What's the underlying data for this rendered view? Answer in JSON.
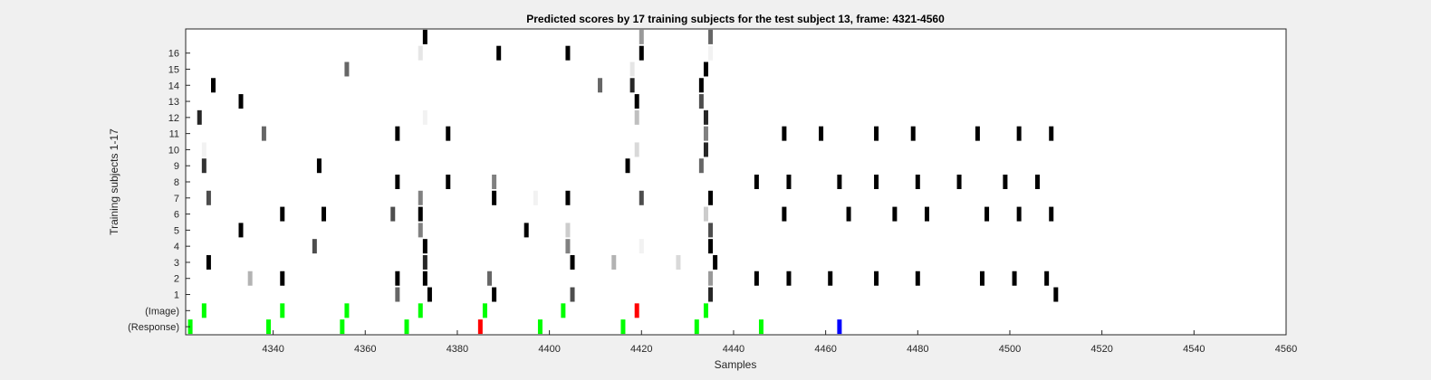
{
  "chart_data": {
    "type": "heatmap",
    "title": "Predicted scores by 17 training subjects for the test subject 13, frame: 4321-4560",
    "xlabel": "Samples",
    "ylabel": "Training subjects 1-17",
    "xlim": [
      4321,
      4560
    ],
    "xticks": [
      4340,
      4360,
      4380,
      4400,
      4420,
      4440,
      4460,
      4480,
      4500,
      4520,
      4540,
      4560
    ],
    "rows": [
      "(Response)",
      "(Image)",
      "1",
      "2",
      "3",
      "4",
      "5",
      "6",
      "7",
      "8",
      "9",
      "10",
      "11",
      "12",
      "13",
      "14",
      "15",
      "16",
      ""
    ],
    "ytick_labels": [
      "(Response)",
      "(Image)",
      "1",
      "2",
      "3",
      "4",
      "5",
      "6",
      "7",
      "8",
      "9",
      "10",
      "11",
      "12",
      "13",
      "14",
      "15",
      "16"
    ],
    "colors": {
      "background": "#f0f0f0",
      "plot": "#ffffff",
      "green": "#00ff00",
      "red": "#ff0000",
      "blue": "#0000ff"
    },
    "grid": false,
    "note_values": "each mark: [row, x sample, intensity 0-1 (1=black) or color]",
    "marks": [
      [
        "(Response)",
        4322,
        "green"
      ],
      [
        "(Response)",
        4339,
        "green"
      ],
      [
        "(Response)",
        4355,
        "green"
      ],
      [
        "(Response)",
        4369,
        "green"
      ],
      [
        "(Response)",
        4385,
        "red"
      ],
      [
        "(Response)",
        4398,
        "green"
      ],
      [
        "(Response)",
        4416,
        "green"
      ],
      [
        "(Response)",
        4432,
        "green"
      ],
      [
        "(Response)",
        4446,
        "green"
      ],
      [
        "(Response)",
        4463,
        "blue"
      ],
      [
        "(Image)",
        4325,
        "green"
      ],
      [
        "(Image)",
        4342,
        "green"
      ],
      [
        "(Image)",
        4356,
        "green"
      ],
      [
        "(Image)",
        4372,
        "green"
      ],
      [
        "(Image)",
        4386,
        "green"
      ],
      [
        "(Image)",
        4403,
        "green"
      ],
      [
        "(Image)",
        4419,
        "red"
      ],
      [
        "(Image)",
        4434,
        "green"
      ],
      [
        "1",
        4367,
        0.6
      ],
      [
        "1",
        4374,
        1
      ],
      [
        "1",
        4388,
        1
      ],
      [
        "1",
        4405,
        0.7
      ],
      [
        "1",
        4435,
        0.85
      ],
      [
        "1",
        4510,
        1
      ],
      [
        "2",
        4335,
        0.3
      ],
      [
        "2",
        4342,
        1
      ],
      [
        "2",
        4367,
        1
      ],
      [
        "2",
        4373,
        1
      ],
      [
        "2",
        4387,
        0.6
      ],
      [
        "2",
        4435,
        0.4
      ],
      [
        "2",
        4445,
        1
      ],
      [
        "2",
        4452,
        1
      ],
      [
        "2",
        4461,
        1
      ],
      [
        "2",
        4471,
        1
      ],
      [
        "2",
        4480,
        1
      ],
      [
        "2",
        4494,
        1
      ],
      [
        "2",
        4501,
        1
      ],
      [
        "2",
        4508,
        1
      ],
      [
        "3",
        4326,
        1
      ],
      [
        "3",
        4373,
        0.85
      ],
      [
        "3",
        4405,
        1
      ],
      [
        "3",
        4414,
        0.3
      ],
      [
        "3",
        4428,
        0.15
      ],
      [
        "3",
        4436,
        1
      ],
      [
        "4",
        4349,
        0.7
      ],
      [
        "4",
        4373,
        1
      ],
      [
        "4",
        4404,
        0.5
      ],
      [
        "4",
        4420,
        0.05
      ],
      [
        "4",
        4435,
        1
      ],
      [
        "5",
        4333,
        1
      ],
      [
        "5",
        4372,
        0.5
      ],
      [
        "5",
        4395,
        1
      ],
      [
        "5",
        4404,
        0.2
      ],
      [
        "5",
        4435,
        0.7
      ],
      [
        "6",
        4342,
        1
      ],
      [
        "6",
        4351,
        1
      ],
      [
        "6",
        4366,
        0.7
      ],
      [
        "6",
        4372,
        1
      ],
      [
        "6",
        4434,
        0.2
      ],
      [
        "6",
        4451,
        1
      ],
      [
        "6",
        4465,
        1
      ],
      [
        "6",
        4475,
        1
      ],
      [
        "6",
        4482,
        1
      ],
      [
        "6",
        4495,
        1
      ],
      [
        "6",
        4502,
        1
      ],
      [
        "6",
        4509,
        1
      ],
      [
        "7",
        4326,
        0.7
      ],
      [
        "7",
        4372,
        0.5
      ],
      [
        "7",
        4388,
        1
      ],
      [
        "7",
        4397,
        0.05
      ],
      [
        "7",
        4404,
        1
      ],
      [
        "7",
        4420,
        0.7
      ],
      [
        "7",
        4435,
        1
      ],
      [
        "8",
        4367,
        1
      ],
      [
        "8",
        4378,
        1
      ],
      [
        "8",
        4388,
        0.5
      ],
      [
        "8",
        4445,
        1
      ],
      [
        "8",
        4452,
        1
      ],
      [
        "8",
        4463,
        1
      ],
      [
        "8",
        4471,
        1
      ],
      [
        "8",
        4480,
        1
      ],
      [
        "8",
        4489,
        1
      ],
      [
        "8",
        4499,
        1
      ],
      [
        "8",
        4506,
        1
      ],
      [
        "9",
        4325,
        0.8
      ],
      [
        "9",
        4350,
        1
      ],
      [
        "9",
        4417,
        1
      ],
      [
        "9",
        4433,
        0.6
      ],
      [
        "10",
        4325,
        0.05
      ],
      [
        "10",
        4419,
        0.15
      ],
      [
        "10",
        4434,
        0.85
      ],
      [
        "11",
        4338,
        0.6
      ],
      [
        "11",
        4367,
        1
      ],
      [
        "11",
        4378,
        1
      ],
      [
        "11",
        4434,
        0.5
      ],
      [
        "11",
        4451,
        1
      ],
      [
        "11",
        4459,
        1
      ],
      [
        "11",
        4471,
        1
      ],
      [
        "11",
        4479,
        1
      ],
      [
        "11",
        4493,
        1
      ],
      [
        "11",
        4502,
        1
      ],
      [
        "11",
        4509,
        1
      ],
      [
        "12",
        4324,
        0.85
      ],
      [
        "12",
        4373,
        0.05
      ],
      [
        "12",
        4419,
        0.25
      ],
      [
        "12",
        4434,
        0.85
      ],
      [
        "13",
        4333,
        1
      ],
      [
        "13",
        4419,
        1
      ],
      [
        "13",
        4433,
        0.7
      ],
      [
        "14",
        4327,
        1
      ],
      [
        "14",
        4411,
        0.6
      ],
      [
        "14",
        4418,
        0.85
      ],
      [
        "14",
        4433,
        1
      ],
      [
        "15",
        4356,
        0.6
      ],
      [
        "15",
        4418,
        0.1
      ],
      [
        "15",
        4434,
        1
      ],
      [
        "16",
        4372,
        0.1
      ],
      [
        "16",
        4389,
        1
      ],
      [
        "16",
        4404,
        1
      ],
      [
        "16",
        4420,
        1
      ],
      [
        "16",
        4435,
        0.05
      ],
      [
        "",
        4373,
        1
      ],
      [
        "",
        4420,
        0.4
      ],
      [
        "",
        4435,
        0.6
      ]
    ]
  }
}
